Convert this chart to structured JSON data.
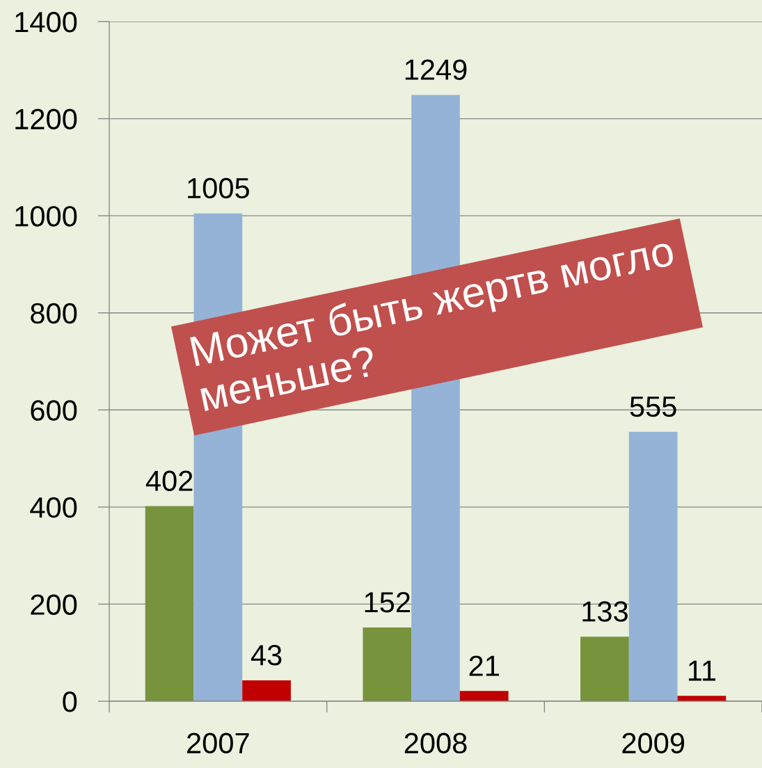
{
  "chart_data": {
    "type": "bar",
    "categories": [
      "2007",
      "2008",
      "2009"
    ],
    "series": [
      {
        "color": "#77933c",
        "values": [
          402,
          152,
          133
        ]
      },
      {
        "color": "#95b3d7",
        "values": [
          1005,
          1249,
          555
        ]
      },
      {
        "color": "#c00000",
        "values": [
          43,
          21,
          11
        ]
      }
    ],
    "ylim": [
      0,
      1400
    ],
    "yticks": [
      0,
      200,
      400,
      600,
      800,
      1000,
      1200,
      1400
    ],
    "grid": "y",
    "data_labels": true,
    "annotations": [
      "Может быть жертв могло меньше?"
    ]
  }
}
